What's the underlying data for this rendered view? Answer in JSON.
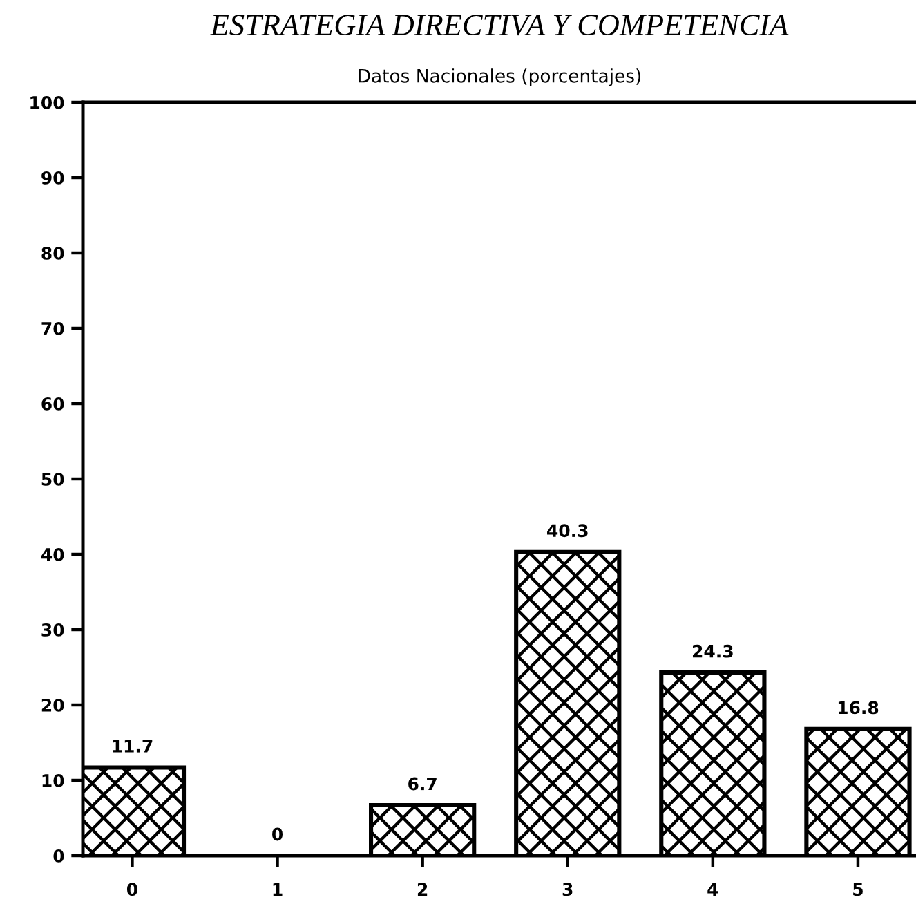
{
  "chart_data": {
    "type": "bar",
    "title": "ESTRATEGIA DIRECTIVA Y COMPETENCIA",
    "subtitle": "Datos Nacionales (porcentajes)",
    "categories": [
      "0",
      "1",
      "2",
      "3",
      "4",
      "5"
    ],
    "values": [
      11.7,
      0,
      6.7,
      40.3,
      24.3,
      16.8
    ],
    "color": "#000000",
    "ylim": [
      0,
      100
    ],
    "yticks": [
      0,
      10,
      20,
      30,
      40,
      50,
      60,
      70,
      80,
      90,
      100
    ],
    "data_labels": true,
    "grid": false
  }
}
